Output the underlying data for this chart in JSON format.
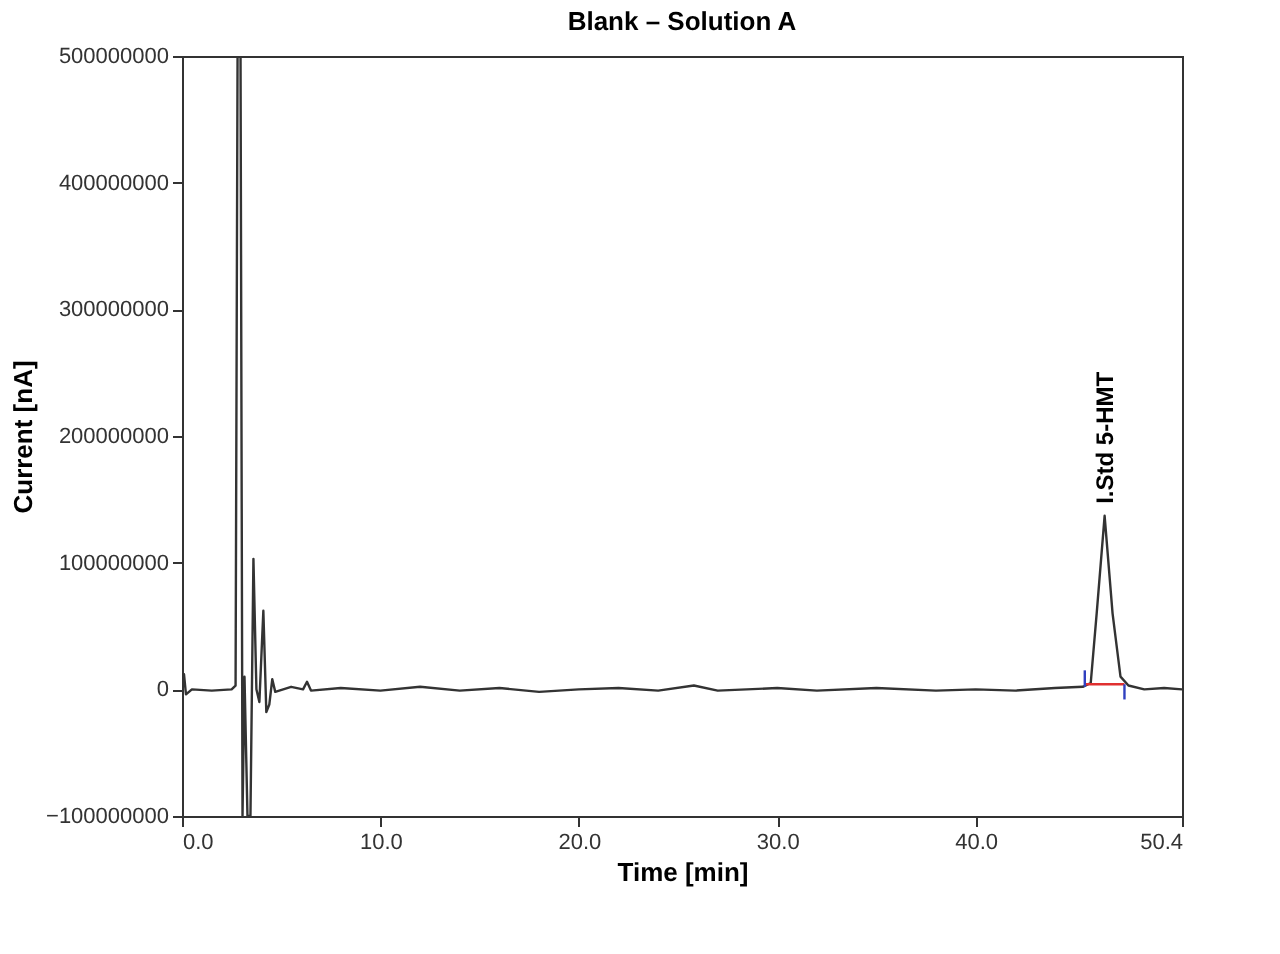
{
  "chart_data": {
    "type": "line",
    "title": "Blank – Solution A",
    "xlabel": "Time [min]",
    "ylabel": "Current [nA]",
    "xlim": [
      0,
      50.4
    ],
    "xticks": [
      {
        "value": 0,
        "label": "0.0"
      },
      {
        "value": 10,
        "label": "10.0"
      },
      {
        "value": 20,
        "label": "20.0"
      },
      {
        "value": 30,
        "label": "30.0"
      },
      {
        "value": 40,
        "label": "40.0"
      },
      {
        "value": 50.4,
        "label": "50.4"
      }
    ],
    "ylim": [
      -100000000,
      500000000
    ],
    "yticks": [
      -100000000,
      0,
      100000000,
      200000000,
      300000000,
      400000000,
      500000000
    ],
    "grid": false,
    "marker": "none",
    "line_style": "solid",
    "annotations": [
      {
        "text": "I.Std 5-HMT",
        "x": 46.5,
        "y": 137000000
      }
    ],
    "series": [
      {
        "color": "#333333",
        "x": [
          0,
          0.1,
          0.2,
          0.5,
          1.5,
          2.5,
          2.7,
          2.8,
          2.95,
          3.05,
          3.15,
          3.3,
          3.45,
          3.6,
          3.75,
          3.9,
          4.1,
          4.25,
          4.4,
          4.55,
          4.7,
          5.5,
          6.1,
          6.3,
          6.5,
          8,
          10,
          12,
          14,
          16,
          18,
          20,
          22,
          24,
          25.8,
          27,
          30,
          32,
          35,
          38,
          40,
          42,
          44,
          45.4,
          45.8,
          46.1,
          46.5,
          46.9,
          47.3,
          47.7,
          48.5,
          49.5,
          50.4
        ],
        "values": [
          0,
          12000000,
          -4000000,
          0,
          -1000000,
          0,
          3000000,
          500000000,
          500000000,
          -100000000,
          10000000,
          -100000000,
          -100000000,
          103000000,
          0,
          -10000000,
          62000000,
          -18000000,
          -12000000,
          8000000,
          -2000000,
          2000000,
          0,
          6000000,
          -1000000,
          1000000,
          -1000000,
          2000000,
          -1000000,
          1000000,
          -2000000,
          0,
          1000000,
          -1000000,
          3000000,
          -1000000,
          1000000,
          -1000000,
          1000000,
          -1000000,
          0,
          -1000000,
          1000000,
          2000000,
          5000000,
          60000000,
          137000000,
          60000000,
          10000000,
          3000000,
          0,
          1000000,
          0
        ]
      },
      {
        "color": "#e03030",
        "x": [
          45.5,
          47.5
        ],
        "values": [
          4000000,
          4000000
        ]
      },
      {
        "color": "#3040c0",
        "x": [
          45.5,
          45.5
        ],
        "values": [
          2000000,
          15000000
        ]
      },
      {
        "color": "#3040c0",
        "x": [
          47.5,
          47.5
        ],
        "values": [
          -8000000,
          4000000
        ]
      }
    ]
  }
}
